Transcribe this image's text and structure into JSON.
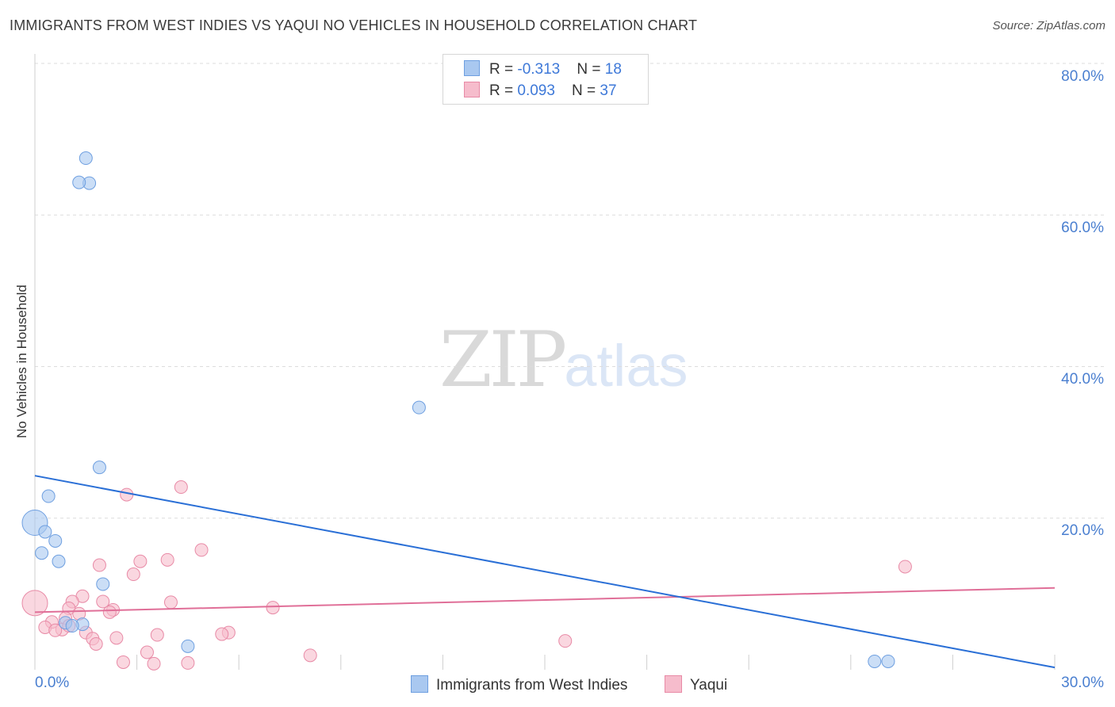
{
  "title": "IMMIGRANTS FROM WEST INDIES VS YAQUI NO VEHICLES IN HOUSEHOLD CORRELATION CHART",
  "source": "Source: ZipAtlas.com",
  "watermark": {
    "zip": "ZIP",
    "atlas": "atlas"
  },
  "legend": {
    "series1": {
      "r_label": "R = ",
      "r_value": "-0.313",
      "n_label": "N = ",
      "n_value": "18"
    },
    "series2": {
      "r_label": "R = ",
      "r_value": "0.093",
      "n_label": "N = ",
      "n_value": "37"
    }
  },
  "colors": {
    "blue_fill": "#a9c8f0",
    "blue_stroke": "#6e9fe0",
    "blue_line": "#2a6fd6",
    "pink_fill": "#f6bccc",
    "pink_stroke": "#e88aa6",
    "pink_line": "#e06f98",
    "grid": "#dcdcdc",
    "tick_text": "#4a7fd0"
  },
  "chart_data": {
    "type": "scatter",
    "title": "IMMIGRANTS FROM WEST INDIES VS YAQUI NO VEHICLES IN HOUSEHOLD CORRELATION CHART",
    "xlabel": "",
    "ylabel": "No Vehicles in Household",
    "xlim": [
      0,
      30
    ],
    "ylim": [
      0,
      80
    ],
    "x_tick_labels": [
      "0.0%",
      "30.0%"
    ],
    "y_ticks": [
      20,
      40,
      60,
      80
    ],
    "y_tick_labels": [
      "20.0%",
      "40.0%",
      "60.0%",
      "80.0%"
    ],
    "legend_position": "top-center",
    "series": [
      {
        "name": "Immigrants from West Indies",
        "color": "#a9c8f0",
        "r": -0.313,
        "n": 18,
        "trend": {
          "x": [
            0,
            30
          ],
          "y": [
            25.6,
            0.3
          ]
        },
        "points": [
          {
            "x": 1.5,
            "y": 67.5,
            "s": 1
          },
          {
            "x": 1.6,
            "y": 64.2,
            "s": 1
          },
          {
            "x": 1.3,
            "y": 64.3,
            "s": 1
          },
          {
            "x": 11.3,
            "y": 34.6,
            "s": 1
          },
          {
            "x": 1.9,
            "y": 26.7,
            "s": 1
          },
          {
            "x": 0.4,
            "y": 22.9,
            "s": 1
          },
          {
            "x": 0.0,
            "y": 19.4,
            "s": 2
          },
          {
            "x": 0.3,
            "y": 18.2,
            "s": 1
          },
          {
            "x": 0.6,
            "y": 17.0,
            "s": 1
          },
          {
            "x": 0.2,
            "y": 15.4,
            "s": 1
          },
          {
            "x": 0.7,
            "y": 14.3,
            "s": 1
          },
          {
            "x": 2.0,
            "y": 11.3,
            "s": 1
          },
          {
            "x": 0.9,
            "y": 6.2,
            "s": 1
          },
          {
            "x": 1.4,
            "y": 6.0,
            "s": 1
          },
          {
            "x": 1.1,
            "y": 5.8,
            "s": 1
          },
          {
            "x": 4.5,
            "y": 3.1,
            "s": 1
          },
          {
            "x": 24.7,
            "y": 1.1,
            "s": 1
          },
          {
            "x": 25.1,
            "y": 1.1,
            "s": 1
          }
        ]
      },
      {
        "name": "Yaqui",
        "color": "#f6bccc",
        "r": 0.093,
        "n": 37,
        "trend": {
          "x": [
            0,
            30
          ],
          "y": [
            7.6,
            10.8
          ]
        },
        "points": [
          {
            "x": 0.0,
            "y": 8.8,
            "s": 2
          },
          {
            "x": 4.3,
            "y": 24.1,
            "s": 1
          },
          {
            "x": 2.7,
            "y": 23.1,
            "s": 1
          },
          {
            "x": 4.9,
            "y": 15.8,
            "s": 1
          },
          {
            "x": 3.1,
            "y": 14.3,
            "s": 1
          },
          {
            "x": 3.9,
            "y": 14.5,
            "s": 1
          },
          {
            "x": 1.9,
            "y": 13.8,
            "s": 1
          },
          {
            "x": 2.9,
            "y": 12.6,
            "s": 1
          },
          {
            "x": 25.6,
            "y": 13.6,
            "s": 1
          },
          {
            "x": 1.4,
            "y": 9.7,
            "s": 1
          },
          {
            "x": 1.1,
            "y": 9.0,
            "s": 1
          },
          {
            "x": 2.0,
            "y": 9.0,
            "s": 1
          },
          {
            "x": 4.0,
            "y": 8.9,
            "s": 1
          },
          {
            "x": 7.0,
            "y": 8.2,
            "s": 1
          },
          {
            "x": 1.0,
            "y": 8.1,
            "s": 1
          },
          {
            "x": 2.3,
            "y": 7.9,
            "s": 1
          },
          {
            "x": 2.2,
            "y": 7.6,
            "s": 1
          },
          {
            "x": 1.3,
            "y": 7.4,
            "s": 1
          },
          {
            "x": 0.9,
            "y": 6.8,
            "s": 1
          },
          {
            "x": 0.5,
            "y": 6.3,
            "s": 1
          },
          {
            "x": 0.3,
            "y": 5.6,
            "s": 1
          },
          {
            "x": 0.8,
            "y": 5.3,
            "s": 1
          },
          {
            "x": 0.6,
            "y": 5.2,
            "s": 1
          },
          {
            "x": 1.5,
            "y": 4.9,
            "s": 1
          },
          {
            "x": 5.7,
            "y": 4.9,
            "s": 1
          },
          {
            "x": 5.5,
            "y": 4.7,
            "s": 1
          },
          {
            "x": 3.6,
            "y": 4.6,
            "s": 1
          },
          {
            "x": 1.7,
            "y": 4.1,
            "s": 1
          },
          {
            "x": 2.4,
            "y": 4.2,
            "s": 1
          },
          {
            "x": 1.8,
            "y": 3.4,
            "s": 1
          },
          {
            "x": 15.6,
            "y": 3.8,
            "s": 1
          },
          {
            "x": 3.3,
            "y": 2.3,
            "s": 1
          },
          {
            "x": 8.1,
            "y": 1.9,
            "s": 1
          },
          {
            "x": 2.6,
            "y": 1.0,
            "s": 1
          },
          {
            "x": 3.5,
            "y": 0.8,
            "s": 1
          },
          {
            "x": 4.5,
            "y": 0.9,
            "s": 1
          },
          {
            "x": 1.0,
            "y": 5.8,
            "s": 1
          }
        ]
      }
    ]
  }
}
